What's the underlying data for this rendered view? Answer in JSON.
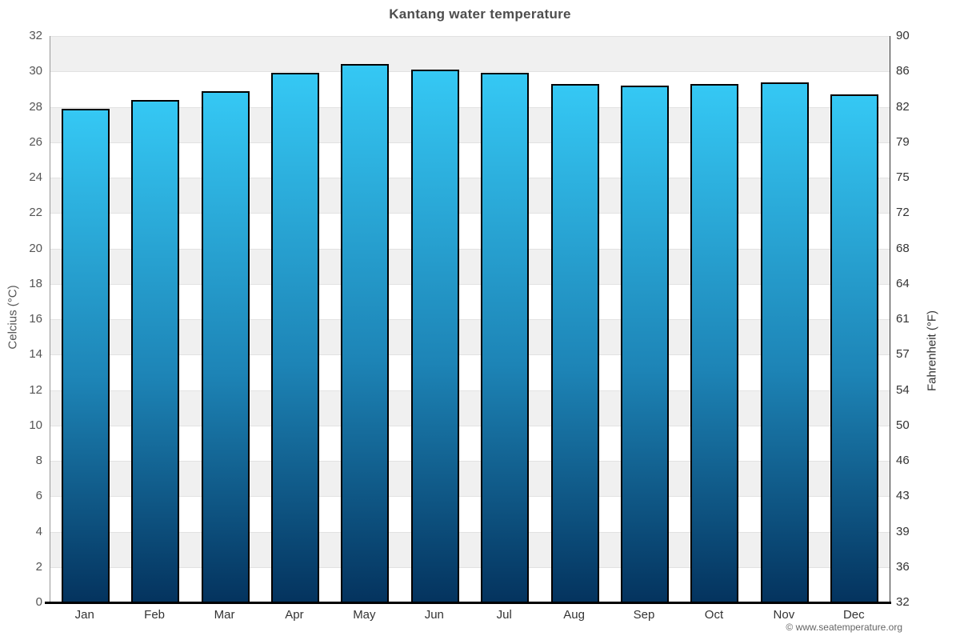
{
  "header": {
    "title": "Kantang water temperature"
  },
  "footer": {
    "copyright": "© www.seatemperature.org"
  },
  "chart_data": {
    "type": "bar",
    "title": "Kantang water temperature",
    "categories": [
      "Jan",
      "Feb",
      "Mar",
      "Apr",
      "May",
      "Jun",
      "Jul",
      "Aug",
      "Sep",
      "Oct",
      "Nov",
      "Dec"
    ],
    "values": [
      27.9,
      28.4,
      28.9,
      29.9,
      30.4,
      30.1,
      29.9,
      29.3,
      29.2,
      29.3,
      29.4,
      28.7
    ],
    "series_unit": "°C",
    "legend": "none",
    "grid": "alternating horizontal bands every 2°C, gray band at top (30-32)",
    "axes": {
      "left": {
        "label": "Celcius (°C)",
        "range": [
          0,
          32
        ],
        "ticks": [
          32,
          30,
          28,
          26,
          24,
          22,
          20,
          18,
          16,
          14,
          12,
          10,
          8,
          6,
          4,
          2,
          0
        ]
      },
      "right": {
        "label": "Fahrenheit (°F)",
        "ticks": [
          90,
          86,
          82,
          79,
          75,
          72,
          68,
          64,
          61,
          57,
          54,
          50,
          46,
          43,
          39,
          36,
          32
        ]
      }
    },
    "colors": {
      "bar_top": "#35c8f4",
      "bar_mid": "#1d84b6",
      "bar_bottom": "#04335e",
      "bar_border": "#000000",
      "band_gray": "#f0f0f0",
      "band_white": "#ffffff",
      "gridline": "#e2e2e2",
      "axis_left_line": "#999999",
      "axis_right_line": "#333333",
      "axis_bottom_line": "#000000",
      "title_text": "#4d4d4d",
      "tick_text_left": "#555555",
      "tick_text_right": "#333333",
      "month_text": "#333333",
      "copyright_text": "#666666"
    }
  }
}
